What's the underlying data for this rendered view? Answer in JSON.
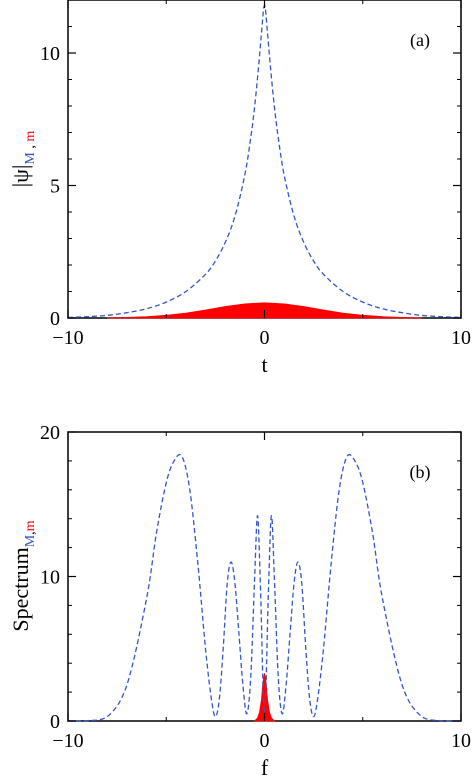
{
  "chart_data": [
    {
      "type": "line",
      "panel_label": "(a)",
      "xlabel": "t",
      "ylabel_main": "|ψ|",
      "ylabel_sub_M": "M",
      "ylabel_sub_sep": " , ",
      "ylabel_sub_m": "m",
      "xlim": [
        -10,
        10
      ],
      "ylim": [
        0,
        12
      ],
      "xticks": [
        -10,
        0,
        10
      ],
      "xtick_labels": [
        "−10",
        "0",
        "10"
      ],
      "yticks": [
        0,
        5,
        10
      ],
      "ytick_labels": [
        "0",
        "5",
        "10"
      ],
      "series": [
        {
          "style": "dashed",
          "color": "#3355cc",
          "x": [
            -10,
            -9,
            -8,
            -7,
            -6,
            -5,
            -4,
            -3,
            -2.5,
            -2,
            -1.5,
            -1,
            -0.7,
            -0.5,
            -0.3,
            -0.15,
            0,
            0.15,
            0.3,
            0.5,
            0.7,
            1,
            1.5,
            2,
            2.5,
            3,
            4,
            5,
            6,
            7,
            8,
            9,
            10
          ],
          "y": [
            0.02,
            0.05,
            0.1,
            0.2,
            0.35,
            0.6,
            1.0,
            1.65,
            2.15,
            2.85,
            3.85,
            5.4,
            6.8,
            8.0,
            9.5,
            10.8,
            11.8,
            10.8,
            9.5,
            8.0,
            6.8,
            5.4,
            3.85,
            2.85,
            2.15,
            1.65,
            1.0,
            0.6,
            0.35,
            0.2,
            0.1,
            0.05,
            0.02
          ]
        },
        {
          "style": "filled",
          "color": "#ff0000",
          "x": [
            -8,
            -7,
            -6,
            -5,
            -4,
            -3,
            -2,
            -1,
            0,
            1,
            2,
            3,
            4,
            5,
            6,
            7,
            8
          ],
          "y": [
            0.0,
            0.02,
            0.05,
            0.1,
            0.18,
            0.3,
            0.43,
            0.53,
            0.57,
            0.53,
            0.43,
            0.3,
            0.18,
            0.1,
            0.05,
            0.02,
            0.0
          ]
        }
      ]
    },
    {
      "type": "line",
      "panel_label": "(b)",
      "xlabel": "f",
      "ylabel_main": "Spectrum",
      "ylabel_sub_M": "M",
      "ylabel_sub_sep": ",",
      "ylabel_sub_m": "m",
      "xlim": [
        -10,
        10
      ],
      "ylim": [
        0,
        20
      ],
      "xticks": [
        -10,
        0,
        10
      ],
      "xtick_labels": [
        "−10",
        "0",
        "10"
      ],
      "yticks": [
        0,
        10,
        20
      ],
      "ytick_labels": [
        "0",
        "10",
        "20"
      ],
      "series": [
        {
          "style": "dashed",
          "color": "#3355cc",
          "x": [
            -10,
            -9,
            -8,
            -7,
            -6,
            -5.5,
            -5,
            -4.6,
            -4.2,
            -3.8,
            -3.4,
            -3,
            -2.7,
            -2.5,
            -2.3,
            -2.1,
            -1.9,
            -1.7,
            -1.5,
            -1.3,
            -1.1,
            -0.9,
            -0.7,
            -0.5,
            -0.35,
            -0.2,
            0,
            0.2,
            0.35,
            0.5,
            0.7,
            0.9,
            1.1,
            1.3,
            1.5,
            1.7,
            1.9,
            2.1,
            2.3,
            2.5,
            2.7,
            3,
            3.4,
            3.8,
            4.2,
            4.6,
            5,
            5.5,
            6,
            7,
            8,
            9,
            10
          ],
          "y": [
            0.0,
            0.02,
            0.3,
            2.5,
            8.5,
            13.0,
            16.5,
            18.0,
            18.3,
            16.0,
            11.0,
            5.0,
            1.5,
            0.3,
            1.5,
            5.0,
            9.5,
            11.0,
            9.5,
            6.0,
            2.5,
            0.5,
            3.0,
            10.0,
            14.2,
            9.0,
            0.3,
            9.0,
            14.2,
            10.0,
            3.0,
            0.5,
            2.5,
            6.0,
            9.5,
            11.0,
            9.5,
            5.0,
            1.5,
            0.3,
            1.5,
            5.0,
            11.0,
            16.0,
            18.3,
            18.0,
            16.5,
            13.0,
            8.5,
            2.5,
            0.3,
            0.02,
            0.0
          ]
        },
        {
          "style": "filled",
          "color": "#ff0000",
          "x": [
            -0.5,
            -0.35,
            -0.25,
            -0.15,
            -0.08,
            0,
            0.08,
            0.15,
            0.25,
            0.35,
            0.5
          ],
          "y": [
            0.0,
            0.2,
            0.6,
            1.5,
            2.6,
            3.3,
            2.6,
            1.5,
            0.6,
            0.2,
            0.0
          ]
        }
      ]
    }
  ]
}
